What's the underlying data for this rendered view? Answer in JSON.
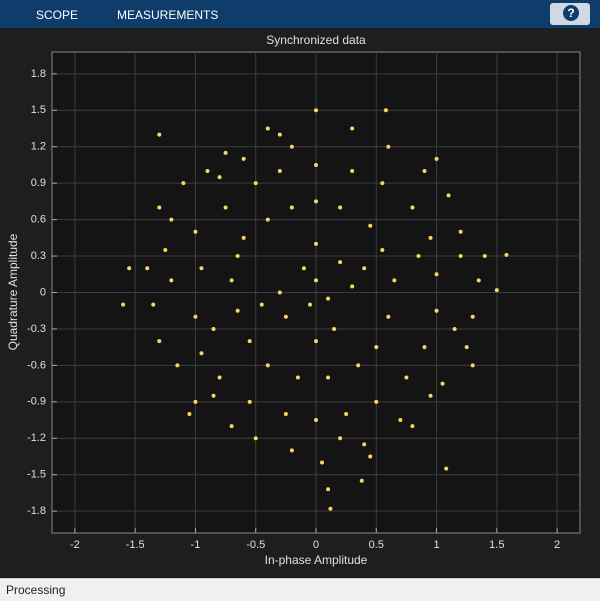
{
  "toolbar": {
    "tabs": [
      "SCOPE",
      "MEASUREMENTS"
    ],
    "help": "?"
  },
  "status_bar": "Processing",
  "chart_data": {
    "type": "scatter",
    "title": "Synchronized data",
    "x_label": "In-phase Amplitude",
    "y_label": "Quadrature Amplitude",
    "color": "#f7d85a",
    "grid": true,
    "xlim": [
      -2.19,
      2.19
    ],
    "ylim": [
      -1.98,
      1.98
    ],
    "xticks": [
      -2,
      -1.5,
      -1,
      -0.5,
      0,
      0.5,
      1,
      1.5,
      2
    ],
    "yticks": [
      -1.8,
      -1.5,
      -1.2,
      -0.9,
      -0.6,
      -0.3,
      0,
      0.3,
      0.6,
      0.9,
      1.2,
      1.5,
      1.8
    ],
    "x": [
      -1.4,
      -1.3,
      -1.2,
      -1.1,
      -1.0,
      -0.9,
      -0.8,
      -0.85,
      -0.7,
      -0.6,
      -0.5,
      -0.3,
      -0.2,
      0,
      0.05,
      0.3,
      0.4,
      0.6,
      0.7,
      0.9,
      0.95,
      1.1,
      1.05,
      1.2,
      1.25,
      1.35,
      1.3,
      1.4,
      -1.35,
      -1.25,
      -0.6,
      -0.4,
      -0.2,
      0,
      0.2,
      0.45,
      0.55,
      0.65,
      0.6,
      0.5,
      0.35,
      0.1,
      -0.15,
      -0.4,
      -0.55,
      -0.65,
      -0.7,
      -0.65,
      0,
      0.1,
      -0.1,
      0.2,
      -0.25,
      0.15,
      -0.05,
      0.3,
      -0.3,
      -1.0,
      -0.95,
      -1.0,
      -0.95,
      -0.8,
      -0.75,
      -0.5,
      -0.3,
      0,
      0.3,
      0.55,
      0.8,
      0.95,
      1.0,
      1.0,
      0.9,
      0.75,
      0.5,
      0.25,
      0,
      -0.25,
      -0.55,
      1.58,
      -1.6,
      0.1,
      0.12,
      -1.3,
      0.58,
      1.08,
      0.38,
      -1.55,
      1.5,
      -1.15,
      -1.2,
      1.15,
      1.2,
      -0.45,
      0.4,
      0.0,
      0.0,
      -0.85,
      0.85,
      -0.2,
      0.2,
      -0.75,
      0.8,
      -1.05,
      1.0,
      -0.4,
      0.45,
      1.3,
      -1.3
    ],
    "values": [
      0.2,
      -0.4,
      0.6,
      0.9,
      -0.9,
      1.0,
      0.95,
      -0.85,
      -1.1,
      1.1,
      -1.2,
      1.3,
      -1.3,
      1.5,
      -1.4,
      1.35,
      -1.25,
      1.2,
      -1.05,
      1.0,
      -0.85,
      0.8,
      -0.75,
      0.5,
      -0.45,
      0.1,
      -0.2,
      0.3,
      -0.1,
      0.35,
      0.45,
      0.6,
      0.7,
      0.75,
      0.7,
      0.55,
      0.35,
      0.1,
      -0.2,
      -0.45,
      -0.6,
      -0.7,
      -0.7,
      -0.6,
      -0.4,
      -0.15,
      0.1,
      0.3,
      0.1,
      -0.05,
      0.2,
      0.25,
      -0.2,
      -0.3,
      -0.1,
      0.05,
      0.0,
      0.5,
      0.2,
      -0.2,
      -0.5,
      -0.7,
      0.7,
      0.9,
      1.0,
      1.05,
      1.0,
      0.9,
      0.7,
      0.45,
      0.15,
      -0.15,
      -0.45,
      -0.7,
      -0.9,
      -1.0,
      -1.05,
      -1.0,
      -0.9,
      0.31,
      -0.1,
      -1.62,
      -1.78,
      1.3,
      1.5,
      -1.45,
      -1.55,
      0.2,
      0.02,
      -0.6,
      0.1,
      -0.3,
      0.3,
      -0.1,
      0.2,
      0.4,
      -0.4,
      -0.3,
      0.3,
      1.2,
      -1.2,
      1.15,
      -1.1,
      -1.0,
      1.1,
      1.35,
      -1.35,
      -0.6,
      0.7
    ]
  }
}
